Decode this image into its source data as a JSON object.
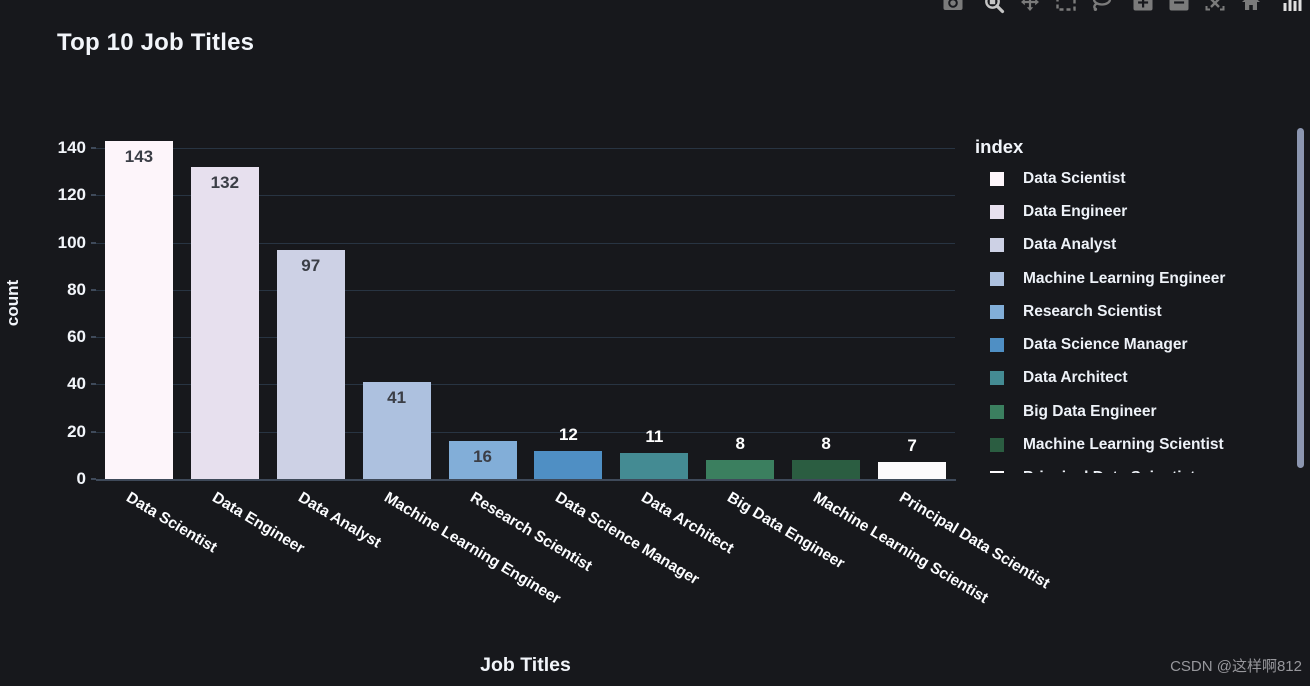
{
  "page": {
    "watermark": "CSDN @这样啊812"
  },
  "toolbar": {
    "icons": [
      {
        "name": "camera",
        "title": "Download plot as a png",
        "group": 1
      },
      {
        "name": "zoom",
        "title": "Zoom",
        "group": 2
      },
      {
        "name": "pan",
        "title": "Pan",
        "group": 2
      },
      {
        "name": "box-select",
        "title": "Box Select",
        "group": 2
      },
      {
        "name": "lasso-select",
        "title": "Lasso Select",
        "group": 2
      },
      {
        "name": "zoom-in",
        "title": "Zoom in",
        "group": 3
      },
      {
        "name": "zoom-out",
        "title": "Zoom out",
        "group": 3
      },
      {
        "name": "autoscale",
        "title": "Autoscale",
        "group": 3
      },
      {
        "name": "reset-axes",
        "title": "Reset axes",
        "group": 3
      },
      {
        "name": "plotly-logo",
        "title": "Produced with Plotly",
        "group": 4
      }
    ]
  },
  "chart_data": {
    "type": "bar",
    "title": "Top 10 Job Titles",
    "xlabel": "Job Titles",
    "ylabel": "count",
    "categories": [
      "Data Scientist",
      "Data Engineer",
      "Data Analyst",
      "Machine Learning Engineer",
      "Research Scientist",
      "Data Science Manager",
      "Data Architect",
      "Big Data Engineer",
      "Machine Learning Scientist",
      "Principal Data Scientist"
    ],
    "values": [
      143,
      132,
      97,
      41,
      16,
      12,
      11,
      8,
      8,
      7
    ],
    "bar_colors": [
      "#fdf5fa",
      "#e7e0ee",
      "#cdd1e5",
      "#adc1df",
      "#82aed8",
      "#4f8fc4",
      "#448b93",
      "#3b7f5f",
      "#2b5d41",
      "#fcfafc"
    ],
    "yticks": [
      0,
      20,
      40,
      60,
      80,
      100,
      120,
      140
    ],
    "ylim": [
      0,
      146
    ],
    "grid": true,
    "legend_title": "index",
    "legend_position": "right",
    "x_tick_angle_deg": 31,
    "bar_value_labels_shown": true
  },
  "theme": {
    "background": "#17181c",
    "text": "#f2f5fa",
    "grid": "#283442",
    "axis_line": "#3f4a5a",
    "inside_label": "#3b3e46",
    "outside_label": "#ffffff",
    "modebar_icon": "#7b7b7b",
    "modebar_icon_bright": "#c4c4c4",
    "logo_icon": "#e0e0e0",
    "scrollbar": "#8c96b0",
    "watermark": "#97979c"
  }
}
